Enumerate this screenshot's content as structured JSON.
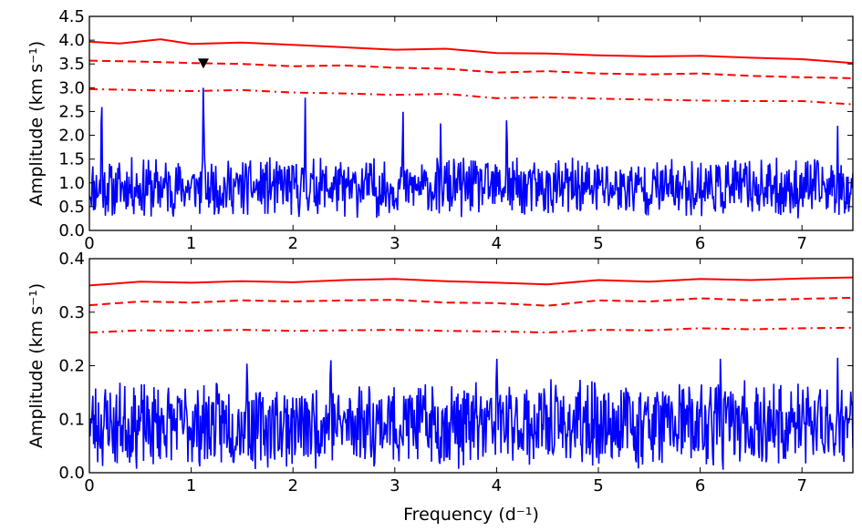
{
  "chart_data": [
    {
      "type": "line",
      "panel": "top",
      "xlabel": "",
      "ylabel": "Amplitude (km s⁻¹)",
      "xlim": [
        0,
        7.5
      ],
      "ylim": [
        0,
        4.5
      ],
      "xticks": [
        0,
        1,
        2,
        3,
        4,
        5,
        6,
        7
      ],
      "yticks": [
        "0.0",
        "0.5",
        "1.0",
        "1.5",
        "2.0",
        "2.5",
        "3.0",
        "3.5",
        "4.0",
        "4.5"
      ],
      "grid": false,
      "legend": "none",
      "periodogram": {
        "color": "#0000ff",
        "baseline": 0.9,
        "noise_amplitude": 0.65,
        "seed": 11,
        "peaks": [
          {
            "x": 0.12,
            "y": 2.9
          },
          {
            "x": 1.12,
            "y": 3.15
          },
          {
            "x": 2.12,
            "y": 2.8
          },
          {
            "x": 3.08,
            "y": 2.62
          },
          {
            "x": 4.1,
            "y": 2.5
          },
          {
            "x": 3.45,
            "y": 2.25
          },
          {
            "x": 7.35,
            "y": 2.2
          }
        ]
      },
      "thresholds": [
        {
          "style": "solid",
          "color": "#ff0000",
          "x": [
            0,
            0.3,
            0.7,
            1.0,
            1.5,
            2.0,
            2.5,
            3.0,
            3.5,
            4.0,
            4.5,
            5.0,
            5.5,
            6.0,
            6.5,
            7.0,
            7.5
          ],
          "y": [
            3.97,
            3.93,
            4.02,
            3.92,
            3.95,
            3.9,
            3.85,
            3.8,
            3.82,
            3.73,
            3.72,
            3.68,
            3.66,
            3.67,
            3.63,
            3.6,
            3.52
          ]
        },
        {
          "style": "dashed",
          "color": "#ff0000",
          "x": [
            0,
            0.5,
            1.0,
            1.5,
            2.0,
            2.5,
            3.0,
            3.5,
            4.0,
            4.5,
            5.0,
            5.5,
            6.0,
            6.5,
            7.0,
            7.5
          ],
          "y": [
            3.57,
            3.55,
            3.52,
            3.5,
            3.45,
            3.47,
            3.42,
            3.4,
            3.32,
            3.35,
            3.3,
            3.28,
            3.3,
            3.25,
            3.22,
            3.2
          ]
        },
        {
          "style": "dashdot",
          "color": "#ff0000",
          "x": [
            0,
            0.5,
            1.0,
            1.5,
            2.0,
            2.5,
            3.0,
            3.5,
            4.0,
            4.5,
            5.0,
            5.5,
            6.0,
            6.5,
            7.0,
            7.5
          ],
          "y": [
            2.97,
            2.95,
            2.93,
            2.95,
            2.9,
            2.88,
            2.85,
            2.87,
            2.78,
            2.8,
            2.77,
            2.75,
            2.73,
            2.72,
            2.72,
            2.65
          ]
        }
      ],
      "marker": {
        "shape": "triangle-down",
        "color": "#000000",
        "x": 1.12,
        "y": 3.5
      }
    },
    {
      "type": "line",
      "panel": "bottom",
      "xlabel": "Frequency (d⁻¹)",
      "ylabel": "Amplitude (km s⁻¹)",
      "xlim": [
        0,
        7.5
      ],
      "ylim": [
        0,
        0.4
      ],
      "xticks": [
        0,
        1,
        2,
        3,
        4,
        5,
        6,
        7
      ],
      "yticks": [
        "0.0",
        "0.1",
        "0.2",
        "0.3",
        "0.4"
      ],
      "grid": false,
      "legend": "none",
      "periodogram": {
        "color": "#0000ff",
        "baseline": 0.09,
        "noise_amplitude": 0.085,
        "seed": 23,
        "peaks": [
          {
            "x": 1.55,
            "y": 0.22
          },
          {
            "x": 2.37,
            "y": 0.235
          },
          {
            "x": 4.0,
            "y": 0.23
          },
          {
            "x": 6.2,
            "y": 0.23
          },
          {
            "x": 7.35,
            "y": 0.215
          }
        ]
      },
      "thresholds": [
        {
          "style": "solid",
          "color": "#ff0000",
          "x": [
            0,
            0.5,
            1.0,
            1.5,
            2.0,
            2.5,
            3.0,
            3.5,
            4.0,
            4.5,
            5.0,
            5.5,
            6.0,
            6.5,
            7.0,
            7.5
          ],
          "y": [
            0.35,
            0.357,
            0.355,
            0.358,
            0.356,
            0.36,
            0.362,
            0.358,
            0.355,
            0.352,
            0.36,
            0.357,
            0.362,
            0.36,
            0.363,
            0.365
          ]
        },
        {
          "style": "dashed",
          "color": "#ff0000",
          "x": [
            0,
            0.5,
            1.0,
            1.5,
            2.0,
            2.5,
            3.0,
            3.5,
            4.0,
            4.5,
            5.0,
            5.5,
            6.0,
            6.5,
            7.0,
            7.5
          ],
          "y": [
            0.313,
            0.32,
            0.318,
            0.322,
            0.32,
            0.322,
            0.323,
            0.318,
            0.317,
            0.312,
            0.322,
            0.32,
            0.326,
            0.322,
            0.325,
            0.327
          ]
        },
        {
          "style": "dashdot",
          "color": "#ff0000",
          "x": [
            0,
            0.5,
            1.0,
            1.5,
            2.0,
            2.5,
            3.0,
            3.5,
            4.0,
            4.5,
            5.0,
            5.5,
            6.0,
            6.5,
            7.0,
            7.5
          ],
          "y": [
            0.262,
            0.266,
            0.265,
            0.267,
            0.265,
            0.266,
            0.267,
            0.265,
            0.264,
            0.262,
            0.267,
            0.266,
            0.27,
            0.268,
            0.27,
            0.271
          ]
        }
      ]
    }
  ]
}
